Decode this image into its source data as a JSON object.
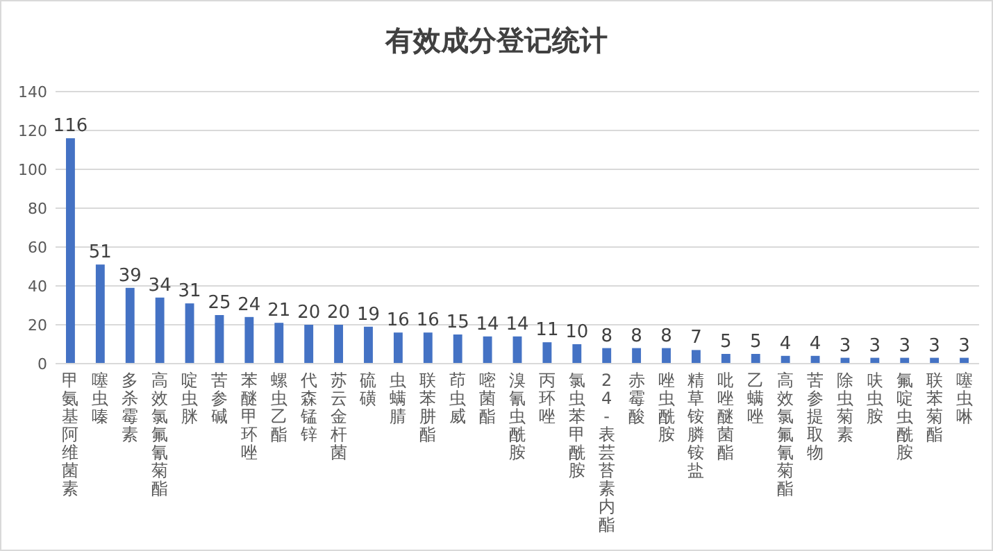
{
  "chart_data": {
    "type": "bar",
    "title": "有效成分登记统计",
    "categories": [
      "甲氨基阿维菌素",
      "噻虫嗪",
      "多杀霉素",
      "高效氯氟氰菊酯",
      "啶虫脒",
      "苦参碱",
      "苯醚甲环唑",
      "螺虫乙酯",
      "代森锰锌",
      "苏云金杆菌",
      "硫磺",
      "虫螨腈",
      "联苯肼酯",
      "茚虫威",
      "嘧菌酯",
      "溴氰虫酰胺",
      "丙环唑",
      "氯虫苯甲酰胺",
      "24-表芸苔素内酯",
      "赤霉酸",
      "唑虫酰胺",
      "精草铵膦铵盐",
      "吡唑醚菌酯",
      "乙螨唑",
      "高效氯氟氰菊酯",
      "苦参提取物",
      "除虫菊素",
      "呋虫胺",
      "氟啶虫酰胺",
      "联苯菊酯",
      "噻虫啉"
    ],
    "values": [
      116,
      51,
      39,
      34,
      31,
      25,
      24,
      21,
      20,
      20,
      19,
      16,
      16,
      15,
      14,
      14,
      11,
      10,
      8,
      8,
      8,
      7,
      5,
      5,
      4,
      4,
      3,
      3,
      3,
      3,
      3
    ],
    "color": "#4472c4",
    "ylim": [
      0,
      140
    ],
    "yticks": [
      0,
      20,
      40,
      60,
      80,
      100,
      120,
      140
    ],
    "grid": "y",
    "data_labels": true
  }
}
